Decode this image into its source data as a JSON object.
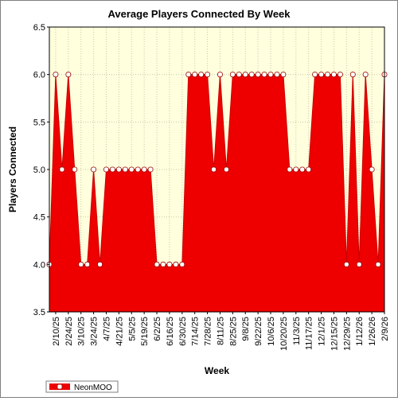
{
  "chart_data": {
    "type": "area",
    "title": "Average Players Connected By Week",
    "xlabel": "Week",
    "ylabel": "Players Connected",
    "ylim": [
      3.5,
      6.5
    ],
    "yticks": [
      "3.5",
      "4.0",
      "4.5",
      "5.0",
      "5.5",
      "6.0",
      "6.5"
    ],
    "xtick_labels": [
      "2/10/25",
      "2/24/25",
      "3/10/25",
      "3/24/25",
      "4/7/25",
      "4/21/25",
      "5/5/25",
      "5/19/25",
      "6/2/25",
      "6/16/25",
      "6/30/25",
      "7/14/25",
      "7/28/25",
      "8/11/25",
      "8/25/25",
      "9/8/25",
      "9/22/25",
      "10/6/25",
      "10/20/25",
      "11/3/25",
      "11/17/25",
      "12/1/25",
      "12/15/25",
      "12/29/25",
      "1/12/26",
      "1/26/26",
      "2/9/26"
    ],
    "grid": true,
    "legend_position": "bottom-left",
    "colors": {
      "fill": "#ee0000",
      "plot_background": "#ffffdd",
      "marker_fill": "#ffffff",
      "marker_stroke": "#990000"
    },
    "series": [
      {
        "name": "NeonMOO",
        "x": [
          "2/3/25",
          "2/10/25",
          "2/17/25",
          "2/24/25",
          "3/3/25",
          "3/10/25",
          "3/17/25",
          "3/24/25",
          "3/31/25",
          "4/7/25",
          "4/14/25",
          "4/21/25",
          "4/28/25",
          "5/5/25",
          "5/12/25",
          "5/19/25",
          "5/26/25",
          "6/2/25",
          "6/9/25",
          "6/16/25",
          "6/23/25",
          "6/30/25",
          "7/7/25",
          "7/14/25",
          "7/21/25",
          "7/28/25",
          "8/4/25",
          "8/11/25",
          "8/18/25",
          "8/25/25",
          "9/1/25",
          "9/8/25",
          "9/15/25",
          "9/22/25",
          "9/29/25",
          "10/6/25",
          "10/13/25",
          "10/20/25",
          "10/27/25",
          "11/3/25",
          "11/10/25",
          "11/17/25",
          "11/24/25",
          "12/1/25",
          "12/8/25",
          "12/15/25",
          "12/22/25",
          "12/29/25",
          "1/5/26",
          "1/12/26",
          "1/19/26",
          "1/26/26",
          "2/2/26",
          "2/9/26"
        ],
        "values": [
          4.0,
          6.0,
          5.0,
          6.0,
          5.0,
          4.0,
          4.0,
          5.0,
          4.0,
          5.0,
          5.0,
          5.0,
          5.0,
          5.0,
          5.0,
          5.0,
          5.0,
          4.0,
          4.0,
          4.0,
          4.0,
          4.0,
          6.0,
          6.0,
          6.0,
          6.0,
          5.0,
          6.0,
          5.0,
          6.0,
          6.0,
          6.0,
          6.0,
          6.0,
          6.0,
          6.0,
          6.0,
          6.0,
          5.0,
          5.0,
          5.0,
          5.0,
          6.0,
          6.0,
          6.0,
          6.0,
          6.0,
          4.0,
          6.0,
          4.0,
          6.0,
          5.0,
          4.0,
          6.0
        ]
      }
    ]
  }
}
